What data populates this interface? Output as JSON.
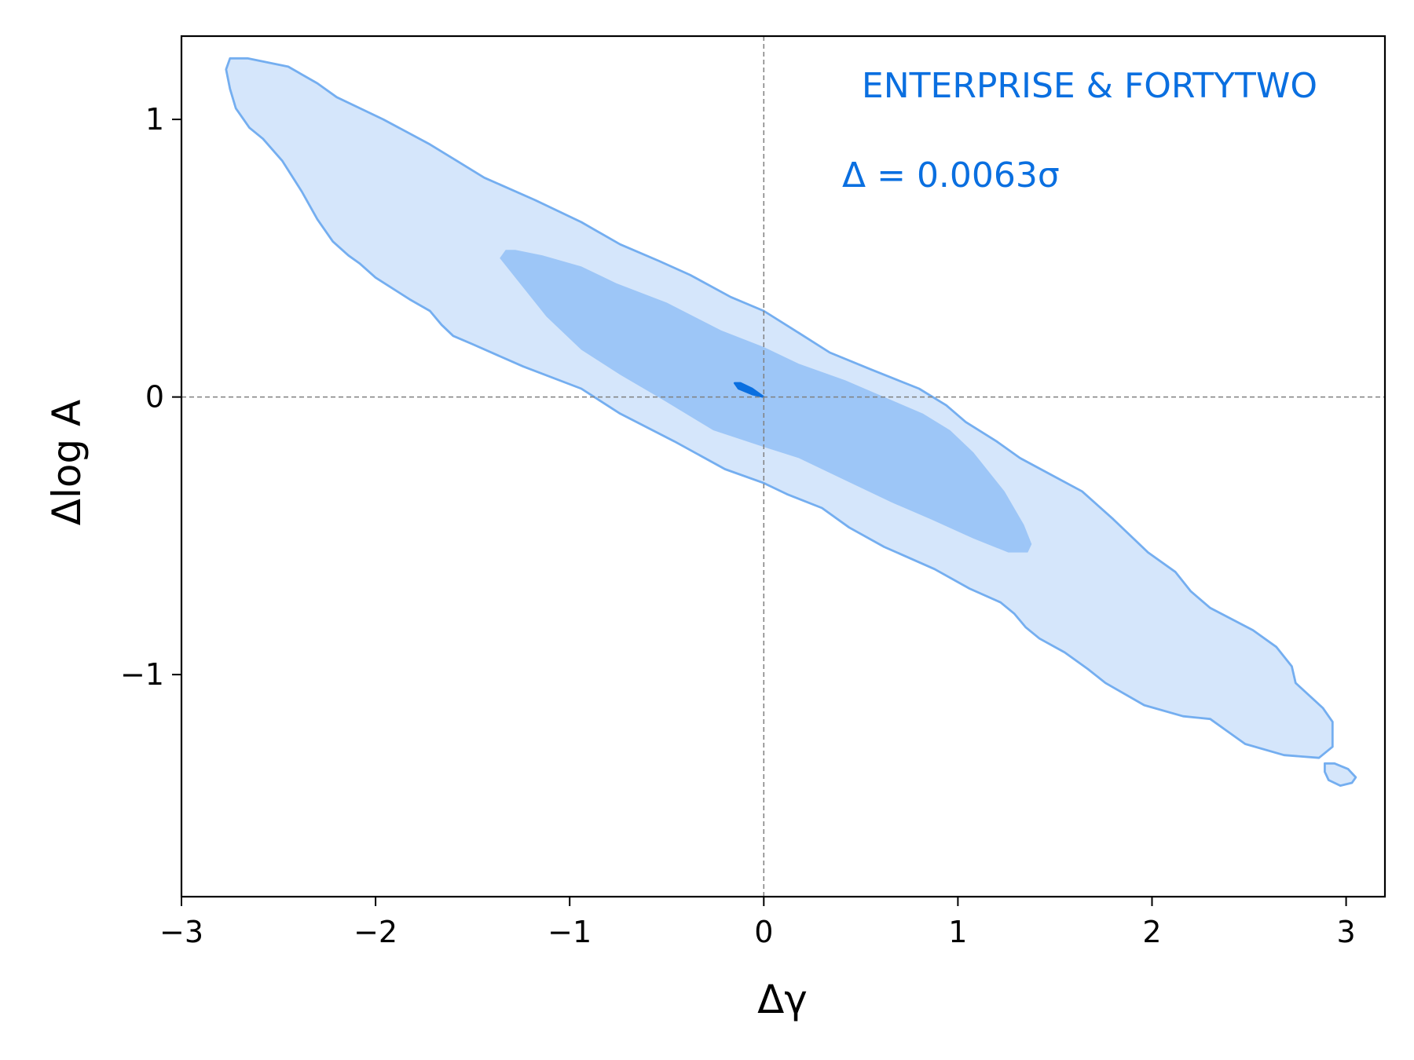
{
  "chart_data": {
    "type": "contour",
    "xlabel": "Δγ",
    "ylabel": "Δlog A",
    "xlim": [
      -3,
      3.2
    ],
    "ylim": [
      -1.8,
      1.3
    ],
    "x_ticks": [
      -3,
      -2,
      -1,
      0,
      1,
      2,
      3
    ],
    "x_tick_labels": [
      "−3",
      "−2",
      "−1",
      "0",
      "1",
      "2",
      "3"
    ],
    "y_ticks": [
      -1,
      0,
      1
    ],
    "y_tick_labels": [
      "−1",
      "0",
      "1"
    ],
    "reference_lines": {
      "x": 0,
      "y": 0,
      "style": "dashed"
    },
    "annotations": {
      "title": "ENTERPRISE & FORTYTWO",
      "delta": "Δ = 0.0063σ"
    },
    "colors": {
      "outer_fill": "#d5e6fb",
      "inner_fill": "#9dc6f7",
      "line": "#74aef0",
      "core": "#0a6fe0",
      "text": "#0a6fe0",
      "ref_line": "#808080"
    },
    "contours": [
      {
        "level": "outer",
        "points": [
          [
            -2.73,
            1.22
          ],
          [
            -2.66,
            1.22
          ],
          [
            -2.45,
            1.19
          ],
          [
            -2.3,
            1.13
          ],
          [
            -2.2,
            1.08
          ],
          [
            -1.96,
            1.0
          ],
          [
            -1.72,
            0.91
          ],
          [
            -1.58,
            0.85
          ],
          [
            -1.44,
            0.79
          ],
          [
            -1.18,
            0.71
          ],
          [
            -0.94,
            0.63
          ],
          [
            -0.74,
            0.55
          ],
          [
            -0.54,
            0.49
          ],
          [
            -0.38,
            0.44
          ],
          [
            -0.17,
            0.36
          ],
          [
            0.0,
            0.31
          ],
          [
            0.16,
            0.24
          ],
          [
            0.34,
            0.16
          ],
          [
            0.55,
            0.1
          ],
          [
            0.8,
            0.03
          ],
          [
            0.94,
            -0.03
          ],
          [
            1.04,
            -0.09
          ],
          [
            1.2,
            -0.16
          ],
          [
            1.32,
            -0.22
          ],
          [
            1.48,
            -0.28
          ],
          [
            1.64,
            -0.34
          ],
          [
            1.8,
            -0.44
          ],
          [
            1.98,
            -0.56
          ],
          [
            2.12,
            -0.63
          ],
          [
            2.2,
            -0.7
          ],
          [
            2.3,
            -0.76
          ],
          [
            2.52,
            -0.84
          ],
          [
            2.64,
            -0.9
          ],
          [
            2.72,
            -0.97
          ],
          [
            2.74,
            -1.03
          ],
          [
            2.88,
            -1.12
          ],
          [
            2.93,
            -1.17
          ],
          [
            2.93,
            -1.26
          ],
          [
            2.86,
            -1.3
          ],
          [
            2.68,
            -1.29
          ],
          [
            2.48,
            -1.25
          ],
          [
            2.38,
            -1.2
          ],
          [
            2.3,
            -1.16
          ],
          [
            2.16,
            -1.15
          ],
          [
            1.96,
            -1.11
          ],
          [
            1.76,
            -1.03
          ],
          [
            1.67,
            -0.98
          ],
          [
            1.55,
            -0.92
          ],
          [
            1.42,
            -0.87
          ],
          [
            1.35,
            -0.83
          ],
          [
            1.29,
            -0.78
          ],
          [
            1.22,
            -0.74
          ],
          [
            1.06,
            -0.69
          ],
          [
            0.88,
            -0.62
          ],
          [
            0.62,
            -0.54
          ],
          [
            0.44,
            -0.47
          ],
          [
            0.3,
            -0.4
          ],
          [
            0.12,
            -0.35
          ],
          [
            0.0,
            -0.31
          ],
          [
            -0.2,
            -0.26
          ],
          [
            -0.46,
            -0.16
          ],
          [
            -0.74,
            -0.06
          ],
          [
            -0.94,
            0.03
          ],
          [
            -1.24,
            0.11
          ],
          [
            -1.5,
            0.19
          ],
          [
            -1.6,
            0.22
          ],
          [
            -1.66,
            0.26
          ],
          [
            -1.72,
            0.31
          ],
          [
            -1.82,
            0.35
          ],
          [
            -2.0,
            0.43
          ],
          [
            -2.08,
            0.48
          ],
          [
            -2.14,
            0.51
          ],
          [
            -2.22,
            0.56
          ],
          [
            -2.3,
            0.64
          ],
          [
            -2.38,
            0.74
          ],
          [
            -2.48,
            0.85
          ],
          [
            -2.58,
            0.93
          ],
          [
            -2.65,
            0.97
          ],
          [
            -2.72,
            1.04
          ],
          [
            -2.75,
            1.11
          ],
          [
            -2.77,
            1.18
          ],
          [
            -2.75,
            1.22
          ],
          [
            -2.73,
            1.22
          ]
        ]
      },
      {
        "level": "outer-island",
        "points": [
          [
            2.89,
            -1.35
          ],
          [
            2.89,
            -1.32
          ],
          [
            2.94,
            -1.32
          ],
          [
            3.01,
            -1.34
          ],
          [
            3.05,
            -1.37
          ],
          [
            3.03,
            -1.39
          ],
          [
            2.97,
            -1.4
          ],
          [
            2.91,
            -1.38
          ],
          [
            2.89,
            -1.35
          ]
        ]
      },
      {
        "level": "inner",
        "points": [
          [
            -1.33,
            0.53
          ],
          [
            -1.28,
            0.53
          ],
          [
            -1.14,
            0.51
          ],
          [
            -0.94,
            0.47
          ],
          [
            -0.76,
            0.41
          ],
          [
            -0.5,
            0.34
          ],
          [
            -0.22,
            0.24
          ],
          [
            0.0,
            0.18
          ],
          [
            0.18,
            0.12
          ],
          [
            0.42,
            0.06
          ],
          [
            0.62,
            0.0
          ],
          [
            0.82,
            -0.06
          ],
          [
            0.96,
            -0.12
          ],
          [
            1.08,
            -0.2
          ],
          [
            1.24,
            -0.34
          ],
          [
            1.34,
            -0.46
          ],
          [
            1.38,
            -0.53
          ],
          [
            1.36,
            -0.56
          ],
          [
            1.26,
            -0.56
          ],
          [
            1.08,
            -0.51
          ],
          [
            0.86,
            -0.44
          ],
          [
            0.66,
            -0.38
          ],
          [
            0.42,
            -0.3
          ],
          [
            0.18,
            -0.22
          ],
          [
            0.0,
            -0.18
          ],
          [
            -0.26,
            -0.12
          ],
          [
            -0.52,
            -0.01
          ],
          [
            -0.74,
            0.08
          ],
          [
            -0.94,
            0.17
          ],
          [
            -1.12,
            0.29
          ],
          [
            -1.28,
            0.43
          ],
          [
            -1.36,
            0.5
          ],
          [
            -1.33,
            0.53
          ]
        ]
      },
      {
        "level": "core",
        "points": [
          [
            -0.15,
            0.05
          ],
          [
            -0.12,
            0.05
          ],
          [
            -0.06,
            0.03
          ],
          [
            0.0,
            0.0
          ],
          [
            -0.06,
            0.01
          ],
          [
            -0.13,
            0.03
          ],
          [
            -0.15,
            0.05
          ]
        ]
      }
    ]
  }
}
